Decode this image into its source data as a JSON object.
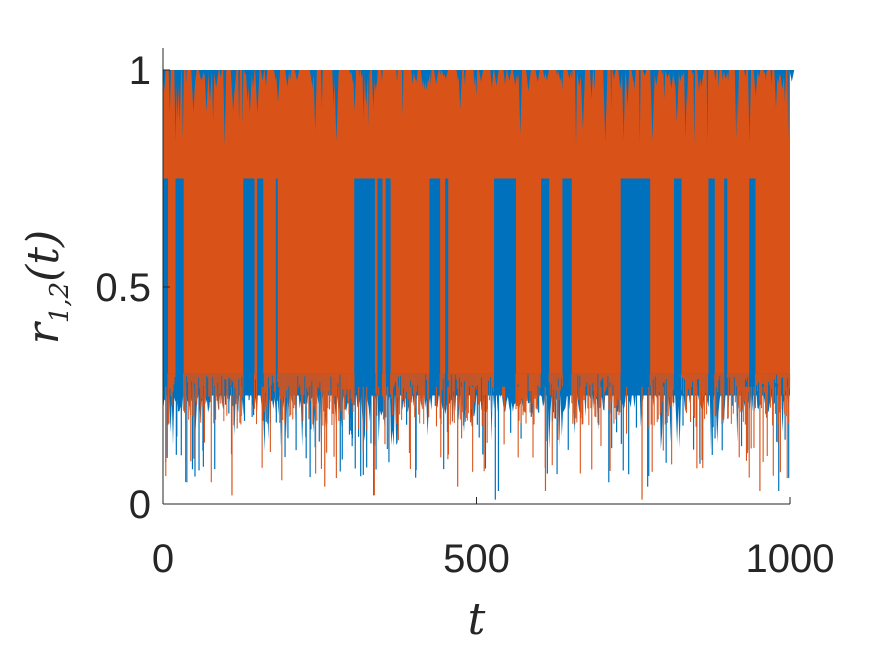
{
  "chart_data": {
    "type": "line",
    "title": "",
    "xlabel": "t",
    "ylabel": {
      "base": "r",
      "sub": "1,2",
      "arg": "(t)"
    },
    "xlim": [
      0,
      1000
    ],
    "ylim": [
      0,
      1
    ],
    "xticks": [
      0,
      500,
      1000
    ],
    "xtick_labels": [
      "0",
      "500",
      "1000"
    ],
    "yticks": [
      0,
      0.5,
      1
    ],
    "ytick_labels": [
      "0",
      "0.5",
      "1"
    ],
    "grid": false,
    "legend": "none",
    "series": [
      {
        "color": "#0072bd",
        "upper_level": 1.0,
        "plateau": 0.75,
        "typical_min": 0.25,
        "lowest_dips": [
          [
            38,
            0.05
          ],
          [
            47,
            0.08
          ],
          [
            336,
            0.02
          ],
          [
            530,
            0.01
          ],
          [
            535,
            0.03
          ],
          [
            613,
            0.07
          ],
          [
            711,
            0.05
          ],
          [
            773,
            0.04
          ],
          [
            982,
            0.03
          ]
        ],
        "pattern": "rapid oscillation between roughly 0.25 and 1 over the whole range"
      },
      {
        "color": "#d95319",
        "upper_level": 1.0,
        "plateau": 0.75,
        "typical_min": 0.3,
        "lowest_dips": [
          [
            110,
            0.02
          ],
          [
            258,
            0.04
          ],
          [
            337,
            0.02
          ],
          [
            470,
            0.04
          ],
          [
            610,
            0.03
          ],
          [
            764,
            0.01
          ],
          [
            952,
            0.03
          ]
        ],
        "pattern": "rapid oscillation between roughly 0.3 and 1, with dense blocks between 0.3 and 0.75"
      }
    ],
    "blue_blocks_between_075_and_025": [
      [
        0,
        8
      ],
      [
        20,
        33
      ],
      [
        128,
        146
      ],
      [
        150,
        160
      ],
      [
        180,
        183
      ],
      [
        305,
        338
      ],
      [
        342,
        350
      ],
      [
        355,
        363
      ],
      [
        425,
        442
      ],
      [
        450,
        455
      ],
      [
        528,
        563
      ],
      [
        603,
        616
      ],
      [
        637,
        652
      ],
      [
        730,
        777
      ],
      [
        815,
        827
      ],
      [
        870,
        880
      ],
      [
        895,
        900
      ],
      [
        935,
        945
      ]
    ]
  }
}
